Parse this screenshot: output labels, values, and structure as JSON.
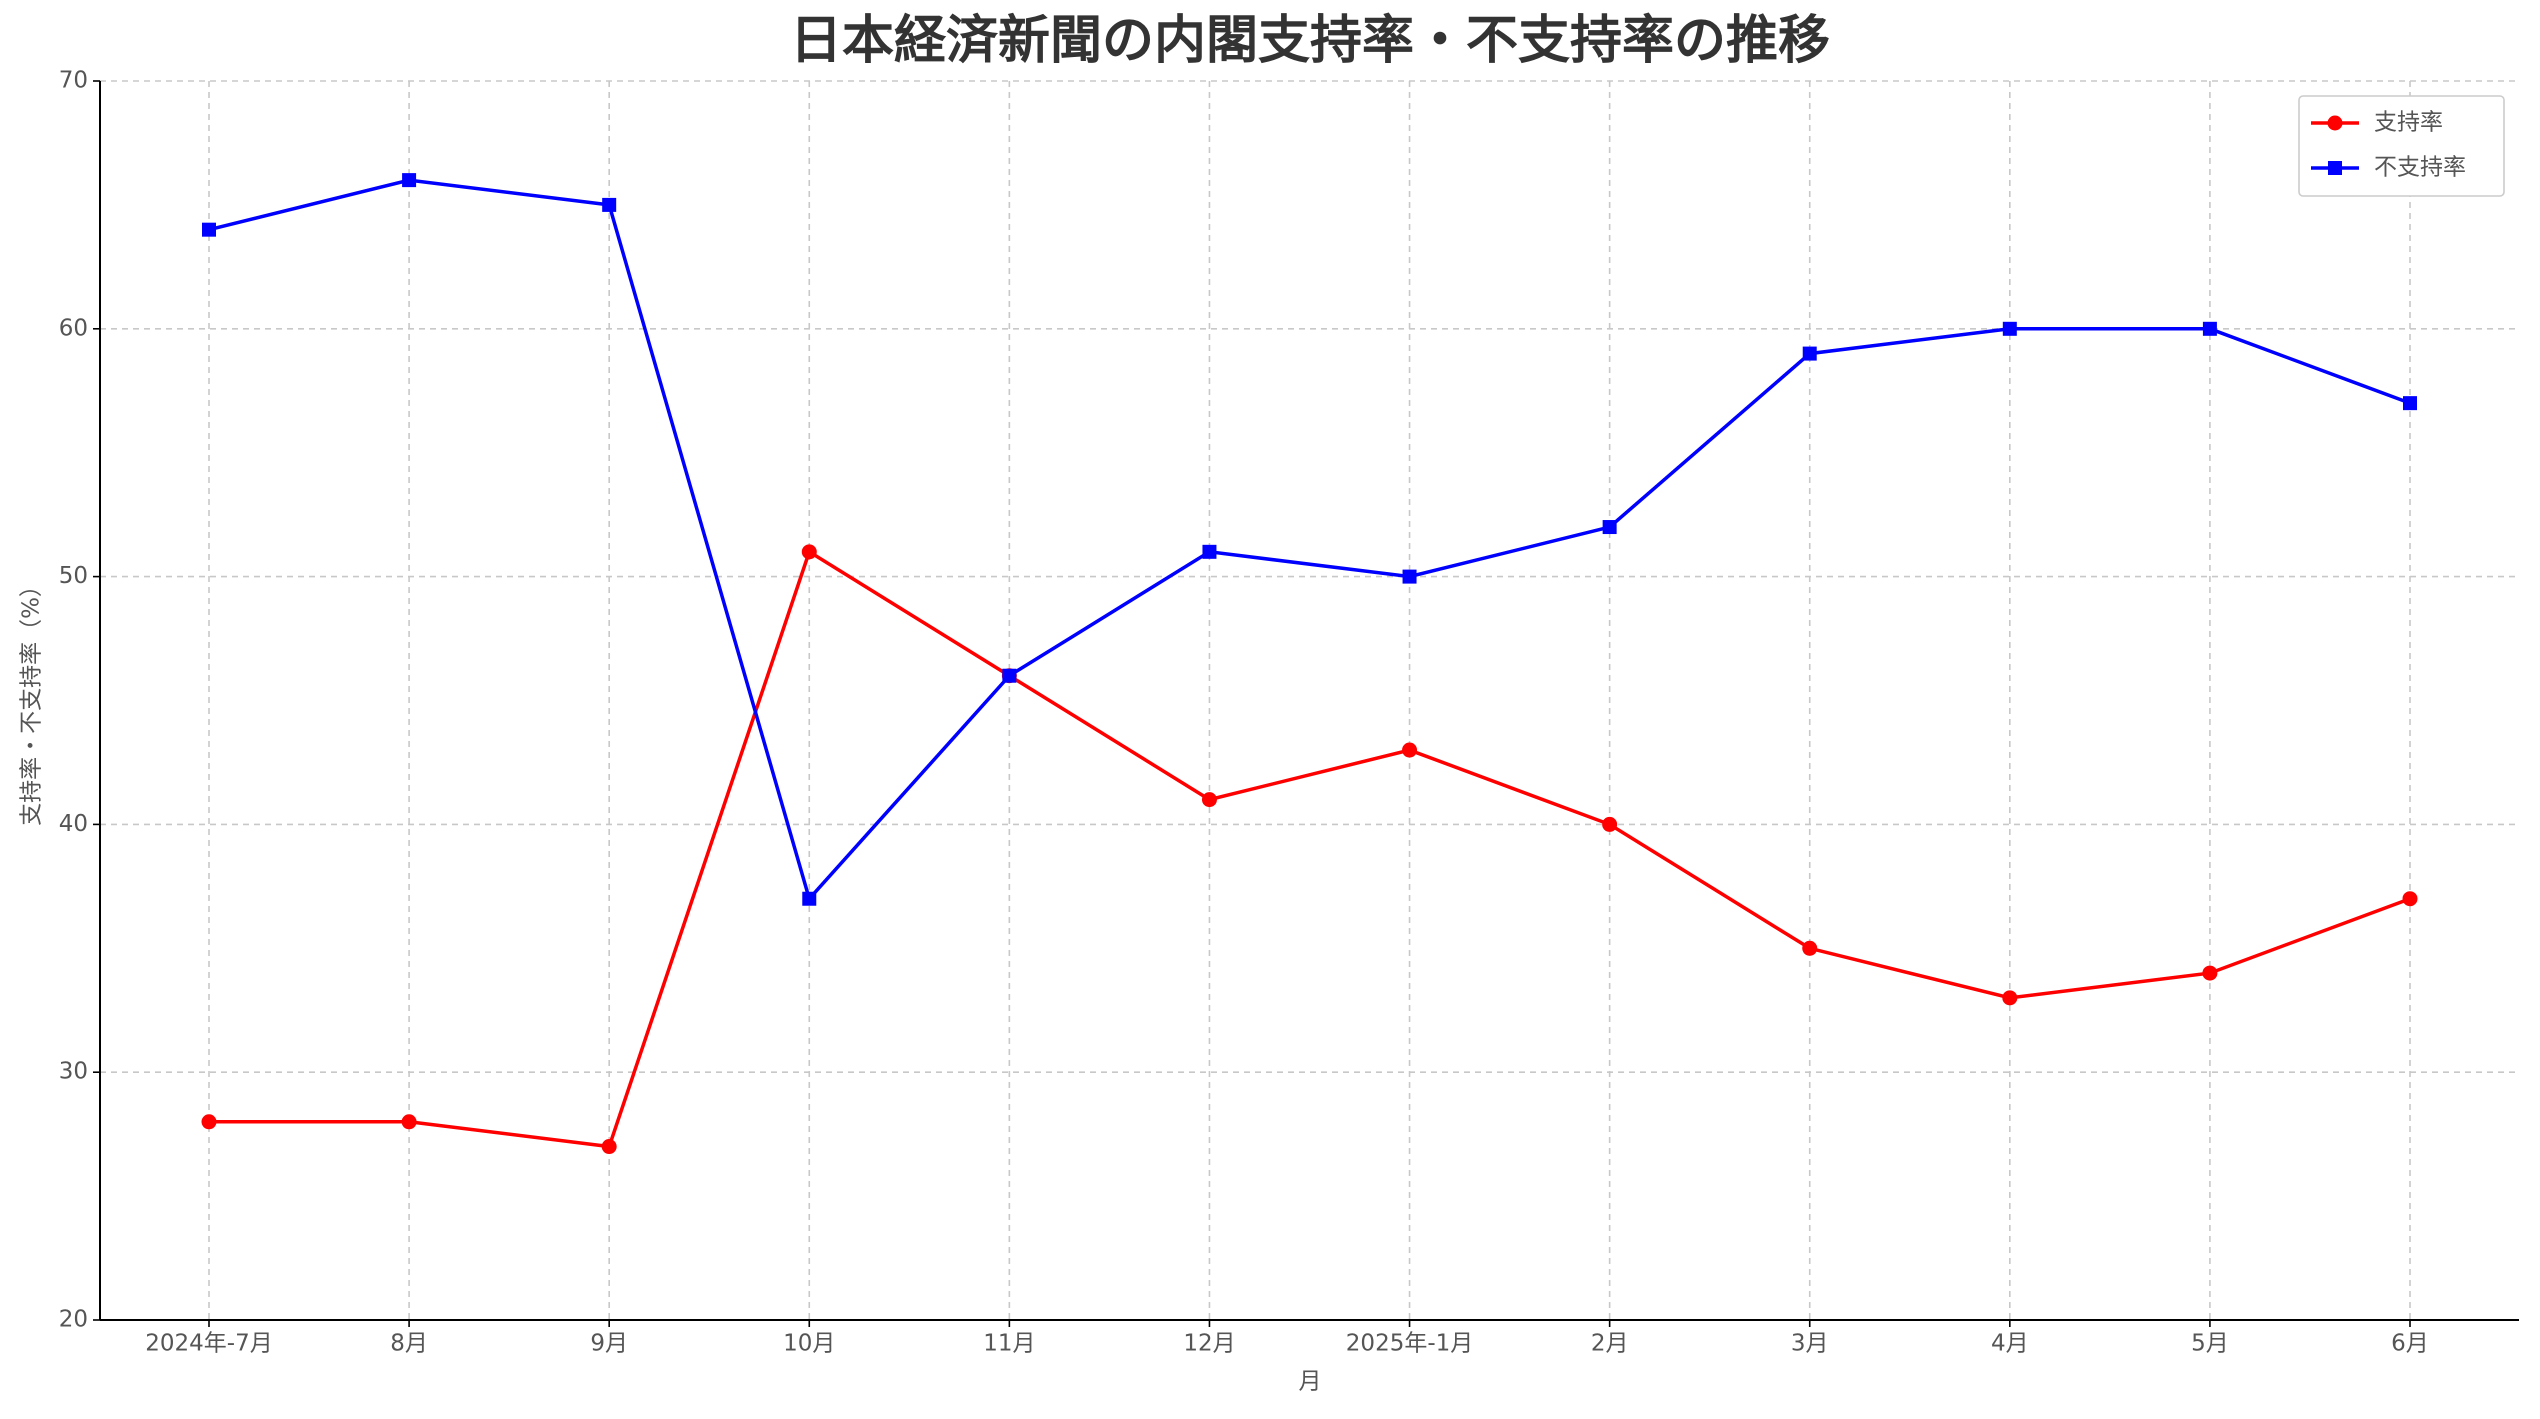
{
  "chart_data": {
    "type": "line",
    "title": "日本経済新聞の内閣支持率・不支持率の推移",
    "x_label": "月",
    "y_label": "支持率・不支持率（%）",
    "categories": [
      "2024年-7月",
      "8月",
      "9月",
      "10月",
      "11月",
      "12月",
      "2025年-1月",
      "2月",
      "3月",
      "4月",
      "5月",
      "6月"
    ],
    "series": [
      {
        "name": "支持率",
        "color": "#ff0000",
        "marker": "circle",
        "values": [
          28,
          28,
          27,
          51,
          46,
          41,
          43,
          40,
          35,
          33,
          34,
          37
        ]
      },
      {
        "name": "不支持率",
        "color": "#0000ff",
        "marker": "square",
        "values": [
          64,
          66,
          65,
          37,
          46,
          51,
          50,
          52,
          59,
          60,
          60,
          57
        ]
      }
    ],
    "ylim": [
      20,
      70
    ],
    "yticks": [
      20,
      30,
      40,
      50,
      60,
      70
    ],
    "grid": true,
    "legend": "upper right"
  }
}
